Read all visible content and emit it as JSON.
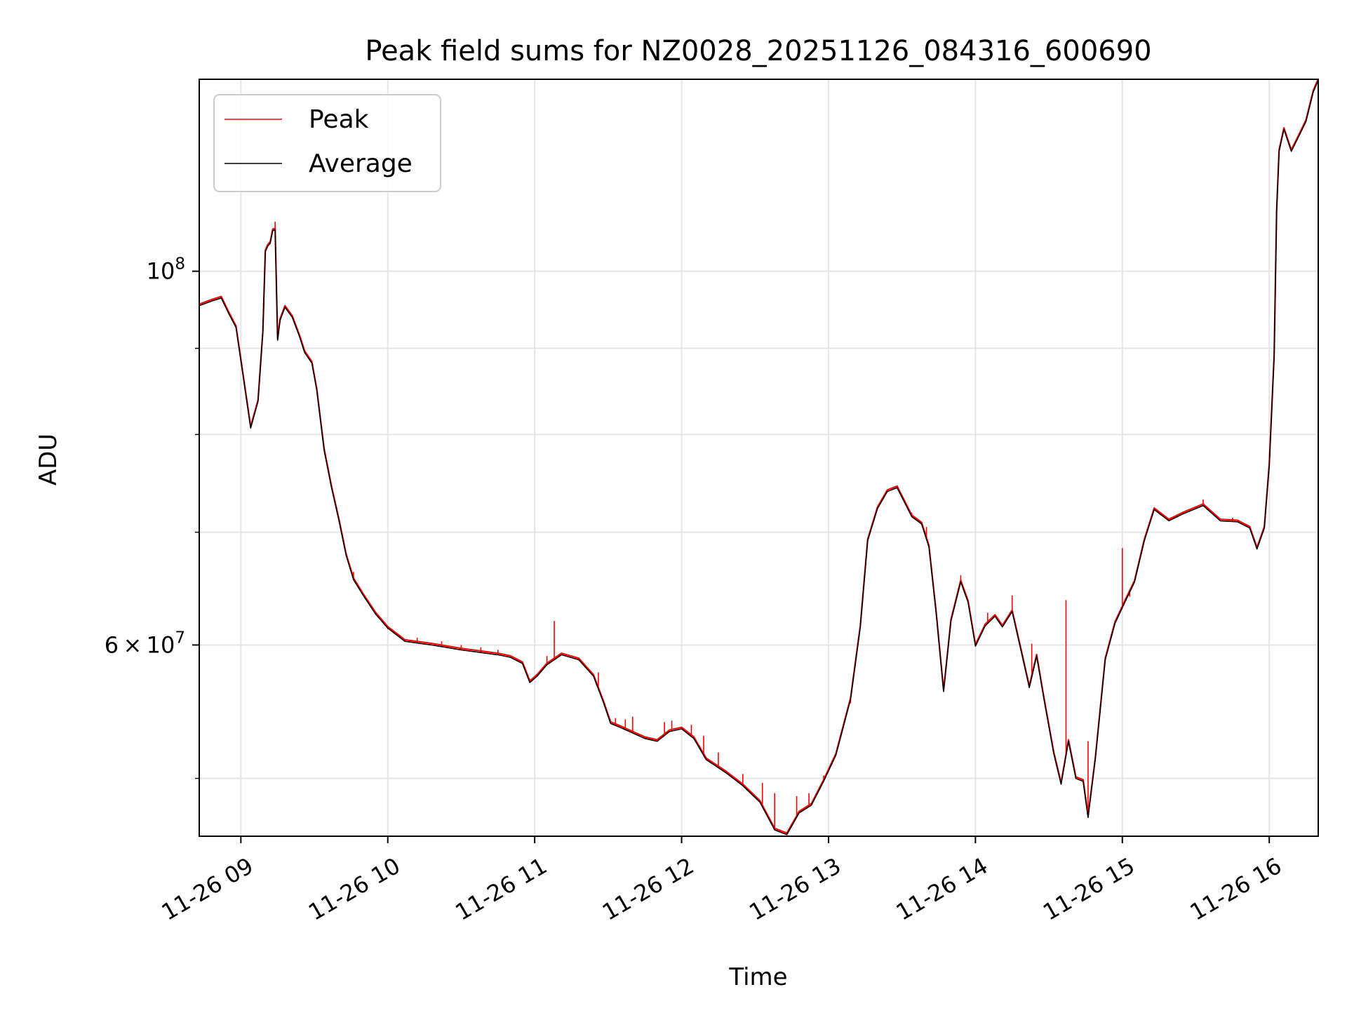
{
  "chart_data": {
    "type": "line",
    "title": "Peak field sums for NZ0028_20251126_084316_600690",
    "xlabel": "Time",
    "ylabel": "ADU",
    "y_scale": "log",
    "ylim": [
      46200000,
      130000000
    ],
    "xlim": [
      "2025-11-26 08:43",
      "2025-11-26 16:20"
    ],
    "grid": true,
    "legend_position": "top-left",
    "x_tick_labels": [
      "11-26 09",
      "11-26 10",
      "11-26 11",
      "11-26 12",
      "11-26 13",
      "11-26 14",
      "11-26 15",
      "11-26 16"
    ],
    "y_tick_labels": [
      {
        "value": 60000000,
        "mantissa": "6",
        "base": "10",
        "exponent": "7"
      },
      {
        "value": 100000000,
        "mantissa": "",
        "base": "10",
        "exponent": "8"
      }
    ],
    "y_minor_ticks": [
      50000000,
      70000000,
      80000000,
      90000000
    ],
    "series": [
      {
        "name": "Average",
        "color": "#000000",
        "points": [
          [
            "2025-11-26 08:43",
            95400000
          ],
          [
            "2025-11-26 08:48",
            96000000
          ],
          [
            "2025-11-26 08:52",
            96400000
          ],
          [
            "2025-11-26 08:55",
            94400000
          ],
          [
            "2025-11-26 08:58",
            92600000
          ],
          [
            "2025-11-26 09:01",
            86500000
          ],
          [
            "2025-11-26 09:04",
            80700000
          ],
          [
            "2025-11-26 09:07",
            83700000
          ],
          [
            "2025-11-26 09:09",
            92000000
          ],
          [
            "2025-11-26 09:10",
            102700000
          ],
          [
            "2025-11-26 09:11",
            103500000
          ],
          [
            "2025-11-26 09:12",
            103900000
          ],
          [
            "2025-11-26 09:13",
            105700000
          ],
          [
            "2025-11-26 09:14",
            105800000
          ],
          [
            "2025-11-26 09:15",
            91000000
          ],
          [
            "2025-11-26 09:16",
            93500000
          ],
          [
            "2025-11-26 09:18",
            95200000
          ],
          [
            "2025-11-26 09:21",
            93900000
          ],
          [
            "2025-11-26 09:24",
            91400000
          ],
          [
            "2025-11-26 09:26",
            89500000
          ],
          [
            "2025-11-26 09:29",
            88200000
          ],
          [
            "2025-11-26 09:31",
            85000000
          ],
          [
            "2025-11-26 09:34",
            78300000
          ],
          [
            "2025-11-26 09:37",
            74400000
          ],
          [
            "2025-11-26 09:40",
            71200000
          ],
          [
            "2025-11-26 09:43",
            67800000
          ],
          [
            "2025-11-26 09:46",
            65600000
          ],
          [
            "2025-11-26 09:50",
            64200000
          ],
          [
            "2025-11-26 09:55",
            62600000
          ],
          [
            "2025-11-26 10:00",
            61400000
          ],
          [
            "2025-11-26 10:07",
            60300000
          ],
          [
            "2025-11-26 10:18",
            60000000
          ],
          [
            "2025-11-26 10:30",
            59600000
          ],
          [
            "2025-11-26 10:45",
            59200000
          ],
          [
            "2025-11-26 10:50",
            59000000
          ],
          [
            "2025-11-26 10:55",
            58500000
          ],
          [
            "2025-11-26 10:58",
            57000000
          ],
          [
            "2025-11-26 11:01",
            57500000
          ],
          [
            "2025-11-26 11:05",
            58400000
          ],
          [
            "2025-11-26 11:11",
            59200000
          ],
          [
            "2025-11-26 11:18",
            58800000
          ],
          [
            "2025-11-26 11:24",
            57500000
          ],
          [
            "2025-11-26 11:28",
            55500000
          ],
          [
            "2025-11-26 11:31",
            53900000
          ],
          [
            "2025-11-26 11:35",
            53600000
          ],
          [
            "2025-11-26 11:45",
            52800000
          ],
          [
            "2025-11-26 11:50",
            52600000
          ],
          [
            "2025-11-26 11:55",
            53300000
          ],
          [
            "2025-11-26 12:00",
            53500000
          ],
          [
            "2025-11-26 12:05",
            52800000
          ],
          [
            "2025-11-26 12:10",
            51300000
          ],
          [
            "2025-11-26 12:18",
            50400000
          ],
          [
            "2025-11-26 12:25",
            49500000
          ],
          [
            "2025-11-26 12:32",
            48400000
          ],
          [
            "2025-11-26 12:38",
            46600000
          ],
          [
            "2025-11-26 12:43",
            46300000
          ],
          [
            "2025-11-26 12:48",
            47700000
          ],
          [
            "2025-11-26 12:53",
            48200000
          ],
          [
            "2025-11-26 12:58",
            49800000
          ],
          [
            "2025-11-26 13:03",
            51600000
          ],
          [
            "2025-11-26 13:09",
            55700000
          ],
          [
            "2025-11-26 13:13",
            61500000
          ],
          [
            "2025-11-26 13:16",
            69200000
          ],
          [
            "2025-11-26 13:20",
            72300000
          ],
          [
            "2025-11-26 13:24",
            74000000
          ],
          [
            "2025-11-26 13:28",
            74400000
          ],
          [
            "2025-11-26 13:34",
            71500000
          ],
          [
            "2025-11-26 13:38",
            70800000
          ],
          [
            "2025-11-26 13:41",
            68600000
          ],
          [
            "2025-11-26 13:44",
            62600000
          ],
          [
            "2025-11-26 13:47",
            56300000
          ],
          [
            "2025-11-26 13:50",
            62000000
          ],
          [
            "2025-11-26 13:54",
            65400000
          ],
          [
            "2025-11-26 13:57",
            63600000
          ],
          [
            "2025-11-26 14:00",
            59900000
          ],
          [
            "2025-11-26 14:04",
            61600000
          ],
          [
            "2025-11-26 14:08",
            62400000
          ],
          [
            "2025-11-26 14:11",
            61500000
          ],
          [
            "2025-11-26 14:15",
            62800000
          ],
          [
            "2025-11-26 14:19",
            59200000
          ],
          [
            "2025-11-26 14:22",
            56600000
          ],
          [
            "2025-11-26 14:25",
            59100000
          ],
          [
            "2025-11-26 14:28",
            55700000
          ],
          [
            "2025-11-26 14:32",
            51700000
          ],
          [
            "2025-11-26 14:35",
            49600000
          ],
          [
            "2025-11-26 14:38",
            52600000
          ],
          [
            "2025-11-26 14:41",
            50000000
          ],
          [
            "2025-11-26 14:44",
            49800000
          ],
          [
            "2025-11-26 14:46",
            47400000
          ],
          [
            "2025-11-26 14:49",
            51400000
          ],
          [
            "2025-11-26 14:53",
            58800000
          ],
          [
            "2025-11-26 14:57",
            61800000
          ],
          [
            "2025-11-26 15:01",
            63600000
          ],
          [
            "2025-11-26 15:05",
            65400000
          ],
          [
            "2025-11-26 15:09",
            69200000
          ],
          [
            "2025-11-26 15:13",
            72200000
          ],
          [
            "2025-11-26 15:19",
            71100000
          ],
          [
            "2025-11-26 15:25",
            71800000
          ],
          [
            "2025-11-26 15:33",
            72600000
          ],
          [
            "2025-11-26 15:40",
            71100000
          ],
          [
            "2025-11-26 15:47",
            71000000
          ],
          [
            "2025-11-26 15:52",
            70400000
          ],
          [
            "2025-11-26 15:55",
            68400000
          ],
          [
            "2025-11-26 15:58",
            70400000
          ],
          [
            "2025-11-26 16:00",
            76700000
          ],
          [
            "2025-11-26 16:02",
            89100000
          ],
          [
            "2025-11-26 16:03",
            108500000
          ],
          [
            "2025-11-26 16:04",
            117800000
          ],
          [
            "2025-11-26 16:06",
            121400000
          ],
          [
            "2025-11-26 16:09",
            117800000
          ],
          [
            "2025-11-26 16:12",
            120200000
          ],
          [
            "2025-11-26 16:15",
            122700000
          ],
          [
            "2025-11-26 16:18",
            127800000
          ],
          [
            "2025-11-26 16:20",
            129800000
          ]
        ]
      },
      {
        "name": "Peak",
        "color": "#ff0000",
        "line_width": 2.2,
        "spikes": [
          [
            "2025-11-26 09:14",
            107000000
          ],
          [
            "2025-11-26 09:46",
            66300000
          ],
          [
            "2025-11-26 10:00",
            61300000
          ],
          [
            "2025-11-26 10:12",
            60600000
          ],
          [
            "2025-11-26 10:22",
            60300000
          ],
          [
            "2025-11-26 10:30",
            60000000
          ],
          [
            "2025-11-26 10:38",
            59800000
          ],
          [
            "2025-11-26 10:45",
            59600000
          ],
          [
            "2025-11-26 11:05",
            59100000
          ],
          [
            "2025-11-26 11:08",
            62000000
          ],
          [
            "2025-11-26 11:26",
            57800000
          ],
          [
            "2025-11-26 11:33",
            54300000
          ],
          [
            "2025-11-26 11:37",
            54200000
          ],
          [
            "2025-11-26 11:40",
            54400000
          ],
          [
            "2025-11-26 11:53",
            54000000
          ],
          [
            "2025-11-26 11:56",
            54100000
          ],
          [
            "2025-11-26 12:04",
            53800000
          ],
          [
            "2025-11-26 12:09",
            53000000
          ],
          [
            "2025-11-26 12:15",
            51800000
          ],
          [
            "2025-11-26 12:25",
            50300000
          ],
          [
            "2025-11-26 12:33",
            49700000
          ],
          [
            "2025-11-26 12:38",
            49000000
          ],
          [
            "2025-11-26 12:47",
            48800000
          ],
          [
            "2025-11-26 12:52",
            49000000
          ],
          [
            "2025-11-26 12:58",
            50200000
          ],
          [
            "2025-11-26 13:05",
            53000000
          ],
          [
            "2025-11-26 13:09",
            55400000
          ],
          [
            "2025-11-26 13:34",
            71900000
          ],
          [
            "2025-11-26 13:40",
            70500000
          ],
          [
            "2025-11-26 13:54",
            66000000
          ],
          [
            "2025-11-26 14:05",
            62700000
          ],
          [
            "2025-11-26 14:15",
            64200000
          ],
          [
            "2025-11-26 14:23",
            60100000
          ],
          [
            "2025-11-26 14:37",
            63800000
          ],
          [
            "2025-11-26 14:46",
            52600000
          ],
          [
            "2025-11-26 14:58",
            62200000
          ],
          [
            "2025-11-26 15:00",
            68500000
          ],
          [
            "2025-11-26 15:03",
            64100000
          ],
          [
            "2025-11-26 15:33",
            73200000
          ],
          [
            "2025-11-26 15:45",
            71400000
          ],
          [
            "2025-11-26 15:58",
            70900000
          ]
        ]
      }
    ]
  }
}
